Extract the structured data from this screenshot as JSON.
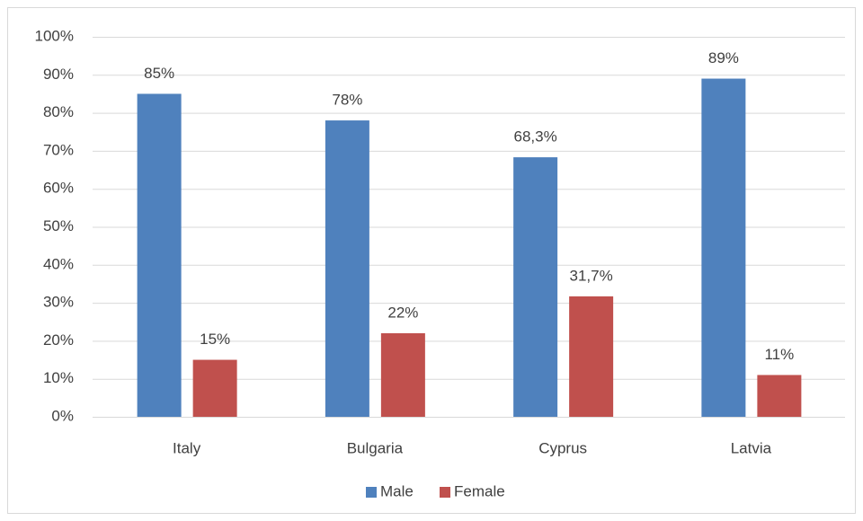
{
  "chart_data": {
    "type": "bar",
    "categories": [
      "Italy",
      "Bulgaria",
      "Cyprus",
      "Latvia"
    ],
    "series": [
      {
        "name": "Male",
        "color": "#4f81bd",
        "values": [
          85,
          78,
          68.3,
          89
        ],
        "value_labels": [
          "85%",
          "78%",
          "68,3%",
          "89%"
        ]
      },
      {
        "name": "Female",
        "color": "#c0504d",
        "values": [
          15,
          22,
          31.7,
          11
        ],
        "value_labels": [
          "15%",
          "22%",
          "31,7%",
          "11%"
        ]
      }
    ],
    "ylim": [
      0,
      100
    ],
    "yticks": [
      {
        "value": 0,
        "label": "0%"
      },
      {
        "value": 10,
        "label": "10%"
      },
      {
        "value": 20,
        "label": "20%"
      },
      {
        "value": 30,
        "label": "30%"
      },
      {
        "value": 40,
        "label": "40%"
      },
      {
        "value": 50,
        "label": "50%"
      },
      {
        "value": 60,
        "label": "60%"
      },
      {
        "value": 70,
        "label": "70%"
      },
      {
        "value": 80,
        "label": "80%"
      },
      {
        "value": 90,
        "label": "90%"
      },
      {
        "value": 100,
        "label": "100%"
      }
    ],
    "grid": true,
    "legend": "bottom"
  }
}
